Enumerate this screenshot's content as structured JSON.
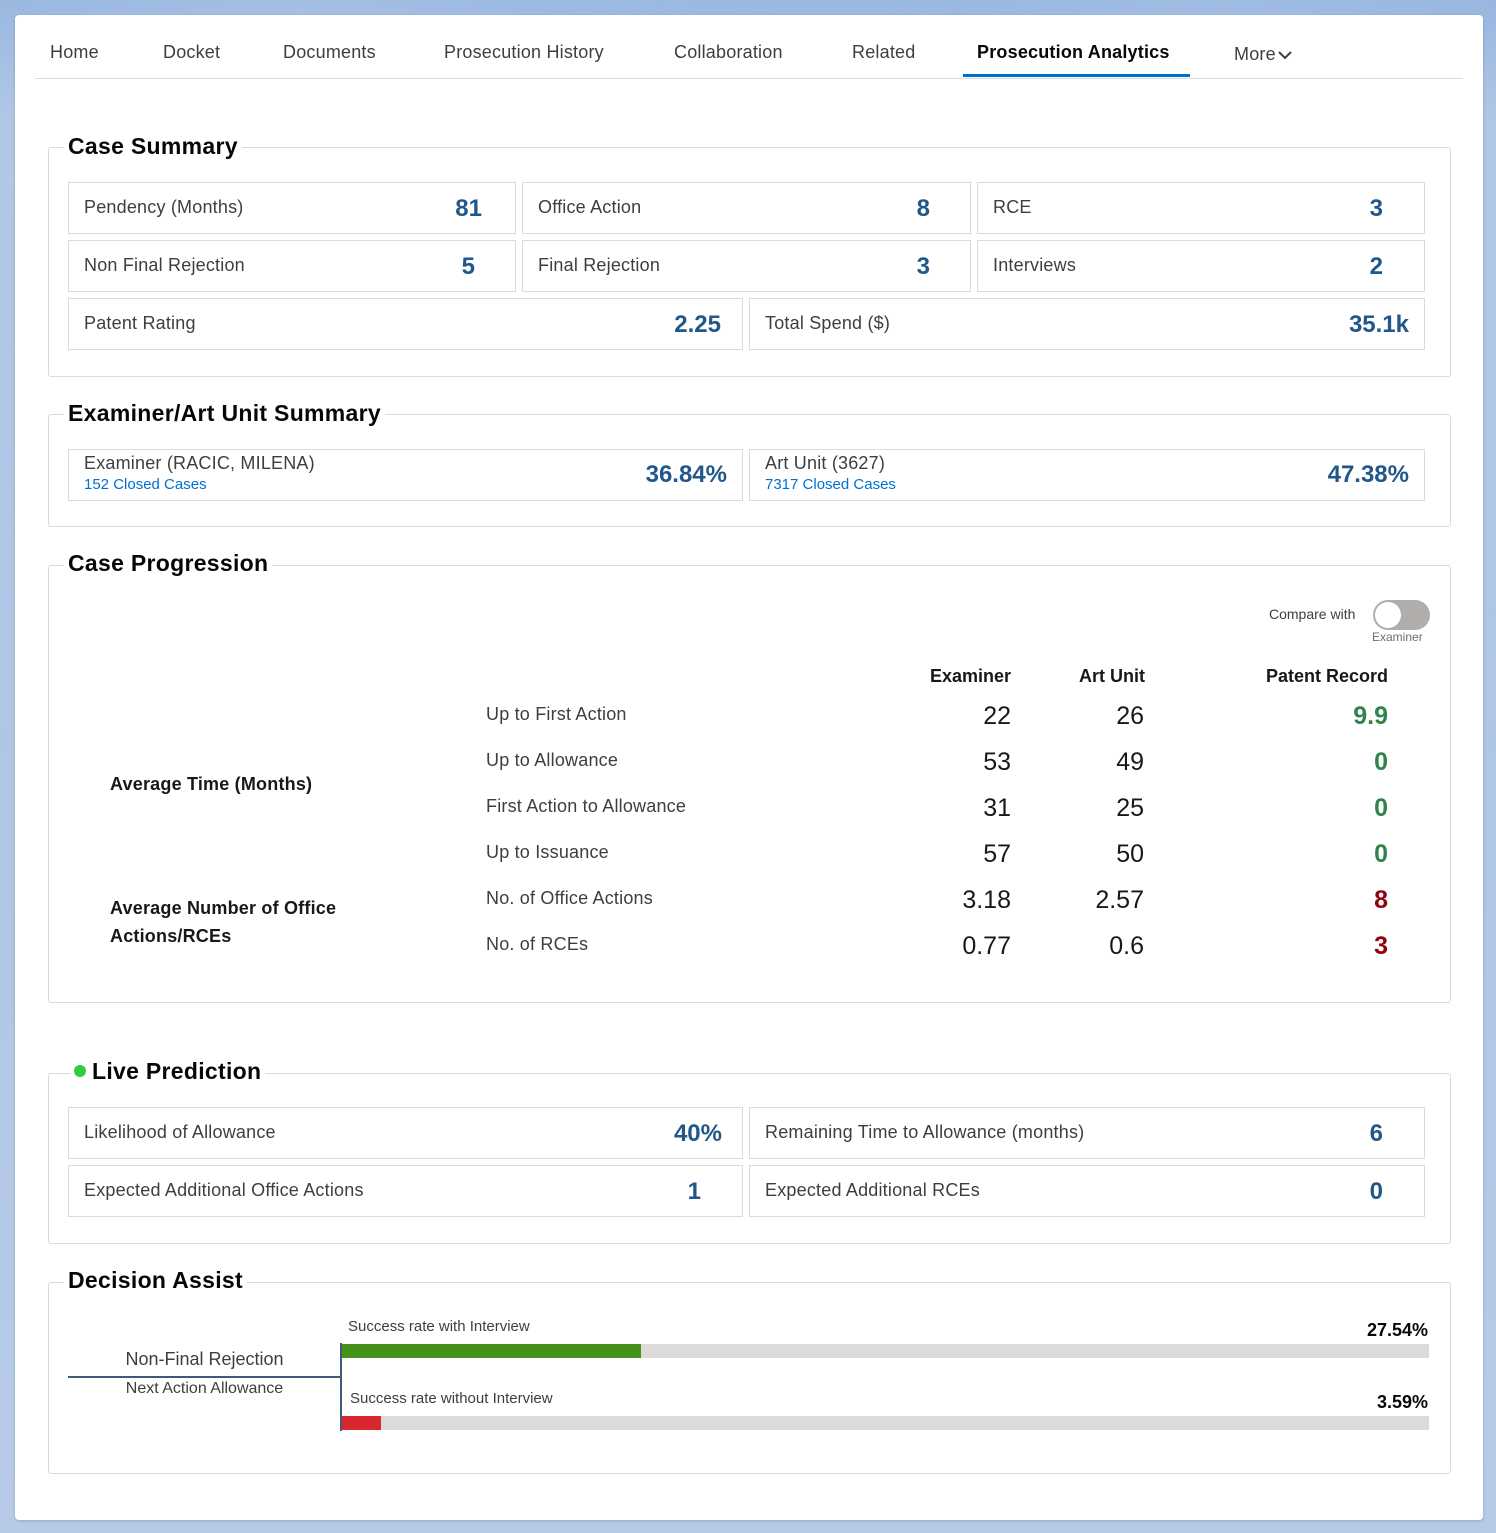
{
  "tabs": [
    {
      "label": "Home"
    },
    {
      "label": "Docket"
    },
    {
      "label": "Documents"
    },
    {
      "label": "Prosecution History"
    },
    {
      "label": "Collaboration"
    },
    {
      "label": "Related"
    },
    {
      "label": "Prosecution Analytics",
      "active": true
    },
    {
      "label": "More"
    }
  ],
  "case_summary": {
    "title": "Case Summary",
    "items": [
      {
        "label": "Pendency (Months)",
        "value": "81"
      },
      {
        "label": "Office Action",
        "value": "8"
      },
      {
        "label": "RCE",
        "value": "3"
      },
      {
        "label": "Non Final Rejection",
        "value": "5"
      },
      {
        "label": "Final Rejection",
        "value": "3"
      },
      {
        "label": "Interviews",
        "value": "2"
      },
      {
        "label": "Patent Rating",
        "value": "2.25"
      },
      {
        "label": "Total Spend ($)",
        "value": "35.1k"
      }
    ]
  },
  "examiner_summary": {
    "title": "Examiner/Art Unit Summary",
    "examiner": {
      "label": "Examiner (RACIC, MILENA)",
      "link": "152 Closed Cases",
      "value": "36.84%"
    },
    "art_unit": {
      "label": "Art Unit (3627)",
      "link": "7317 Closed Cases",
      "value": "47.38%"
    }
  },
  "case_progression": {
    "title": "Case Progression",
    "compare_label": "Compare with",
    "compare_sub": "Examiner",
    "compare_on": false,
    "columns": [
      "Examiner",
      "Art Unit",
      "Patent Record"
    ],
    "group_time": "Average Time (Months)",
    "group_actions": "Average Number of Office Actions/RCEs",
    "rows": [
      {
        "label": "Up to First Action",
        "examiner": "22",
        "art_unit": "26",
        "record": "9.9",
        "color": "#2e844a"
      },
      {
        "label": "Up to Allowance",
        "examiner": "53",
        "art_unit": "49",
        "record": "0",
        "color": "#2e844a"
      },
      {
        "label": "First Action to Allowance",
        "examiner": "31",
        "art_unit": "25",
        "record": "0",
        "color": "#2e844a"
      },
      {
        "label": "Up to Issuance",
        "examiner": "57",
        "art_unit": "50",
        "record": "0",
        "color": "#2e844a"
      },
      {
        "label": "No. of Office Actions",
        "examiner": "3.18",
        "art_unit": "2.57",
        "record": "8",
        "color": "#8e030f"
      },
      {
        "label": "No. of RCEs",
        "examiner": "0.77",
        "art_unit": "0.6",
        "record": "3",
        "color": "#8e030f"
      }
    ]
  },
  "live_prediction": {
    "title": "Live Prediction",
    "status_color": "#2ecc40",
    "items": [
      {
        "label": "Likelihood of Allowance",
        "value": "40%"
      },
      {
        "label": "Remaining Time to Allowance (months)",
        "value": "6"
      },
      {
        "label": "Expected Additional Office Actions",
        "value": "1"
      },
      {
        "label": "Expected Additional RCEs",
        "value": "0"
      }
    ]
  },
  "decision_assist": {
    "title": "Decision Assist",
    "case_state": "Non-Final Rejection",
    "next_action": "Next Action Allowance",
    "bars": [
      {
        "label": "Success rate with Interview",
        "value_text": "27.54%",
        "fraction": 0.2754,
        "color": "#45921b"
      },
      {
        "label": "Success rate without Interview",
        "value_text": "3.59%",
        "fraction": 0.0359,
        "color": "#d9272e"
      }
    ]
  }
}
